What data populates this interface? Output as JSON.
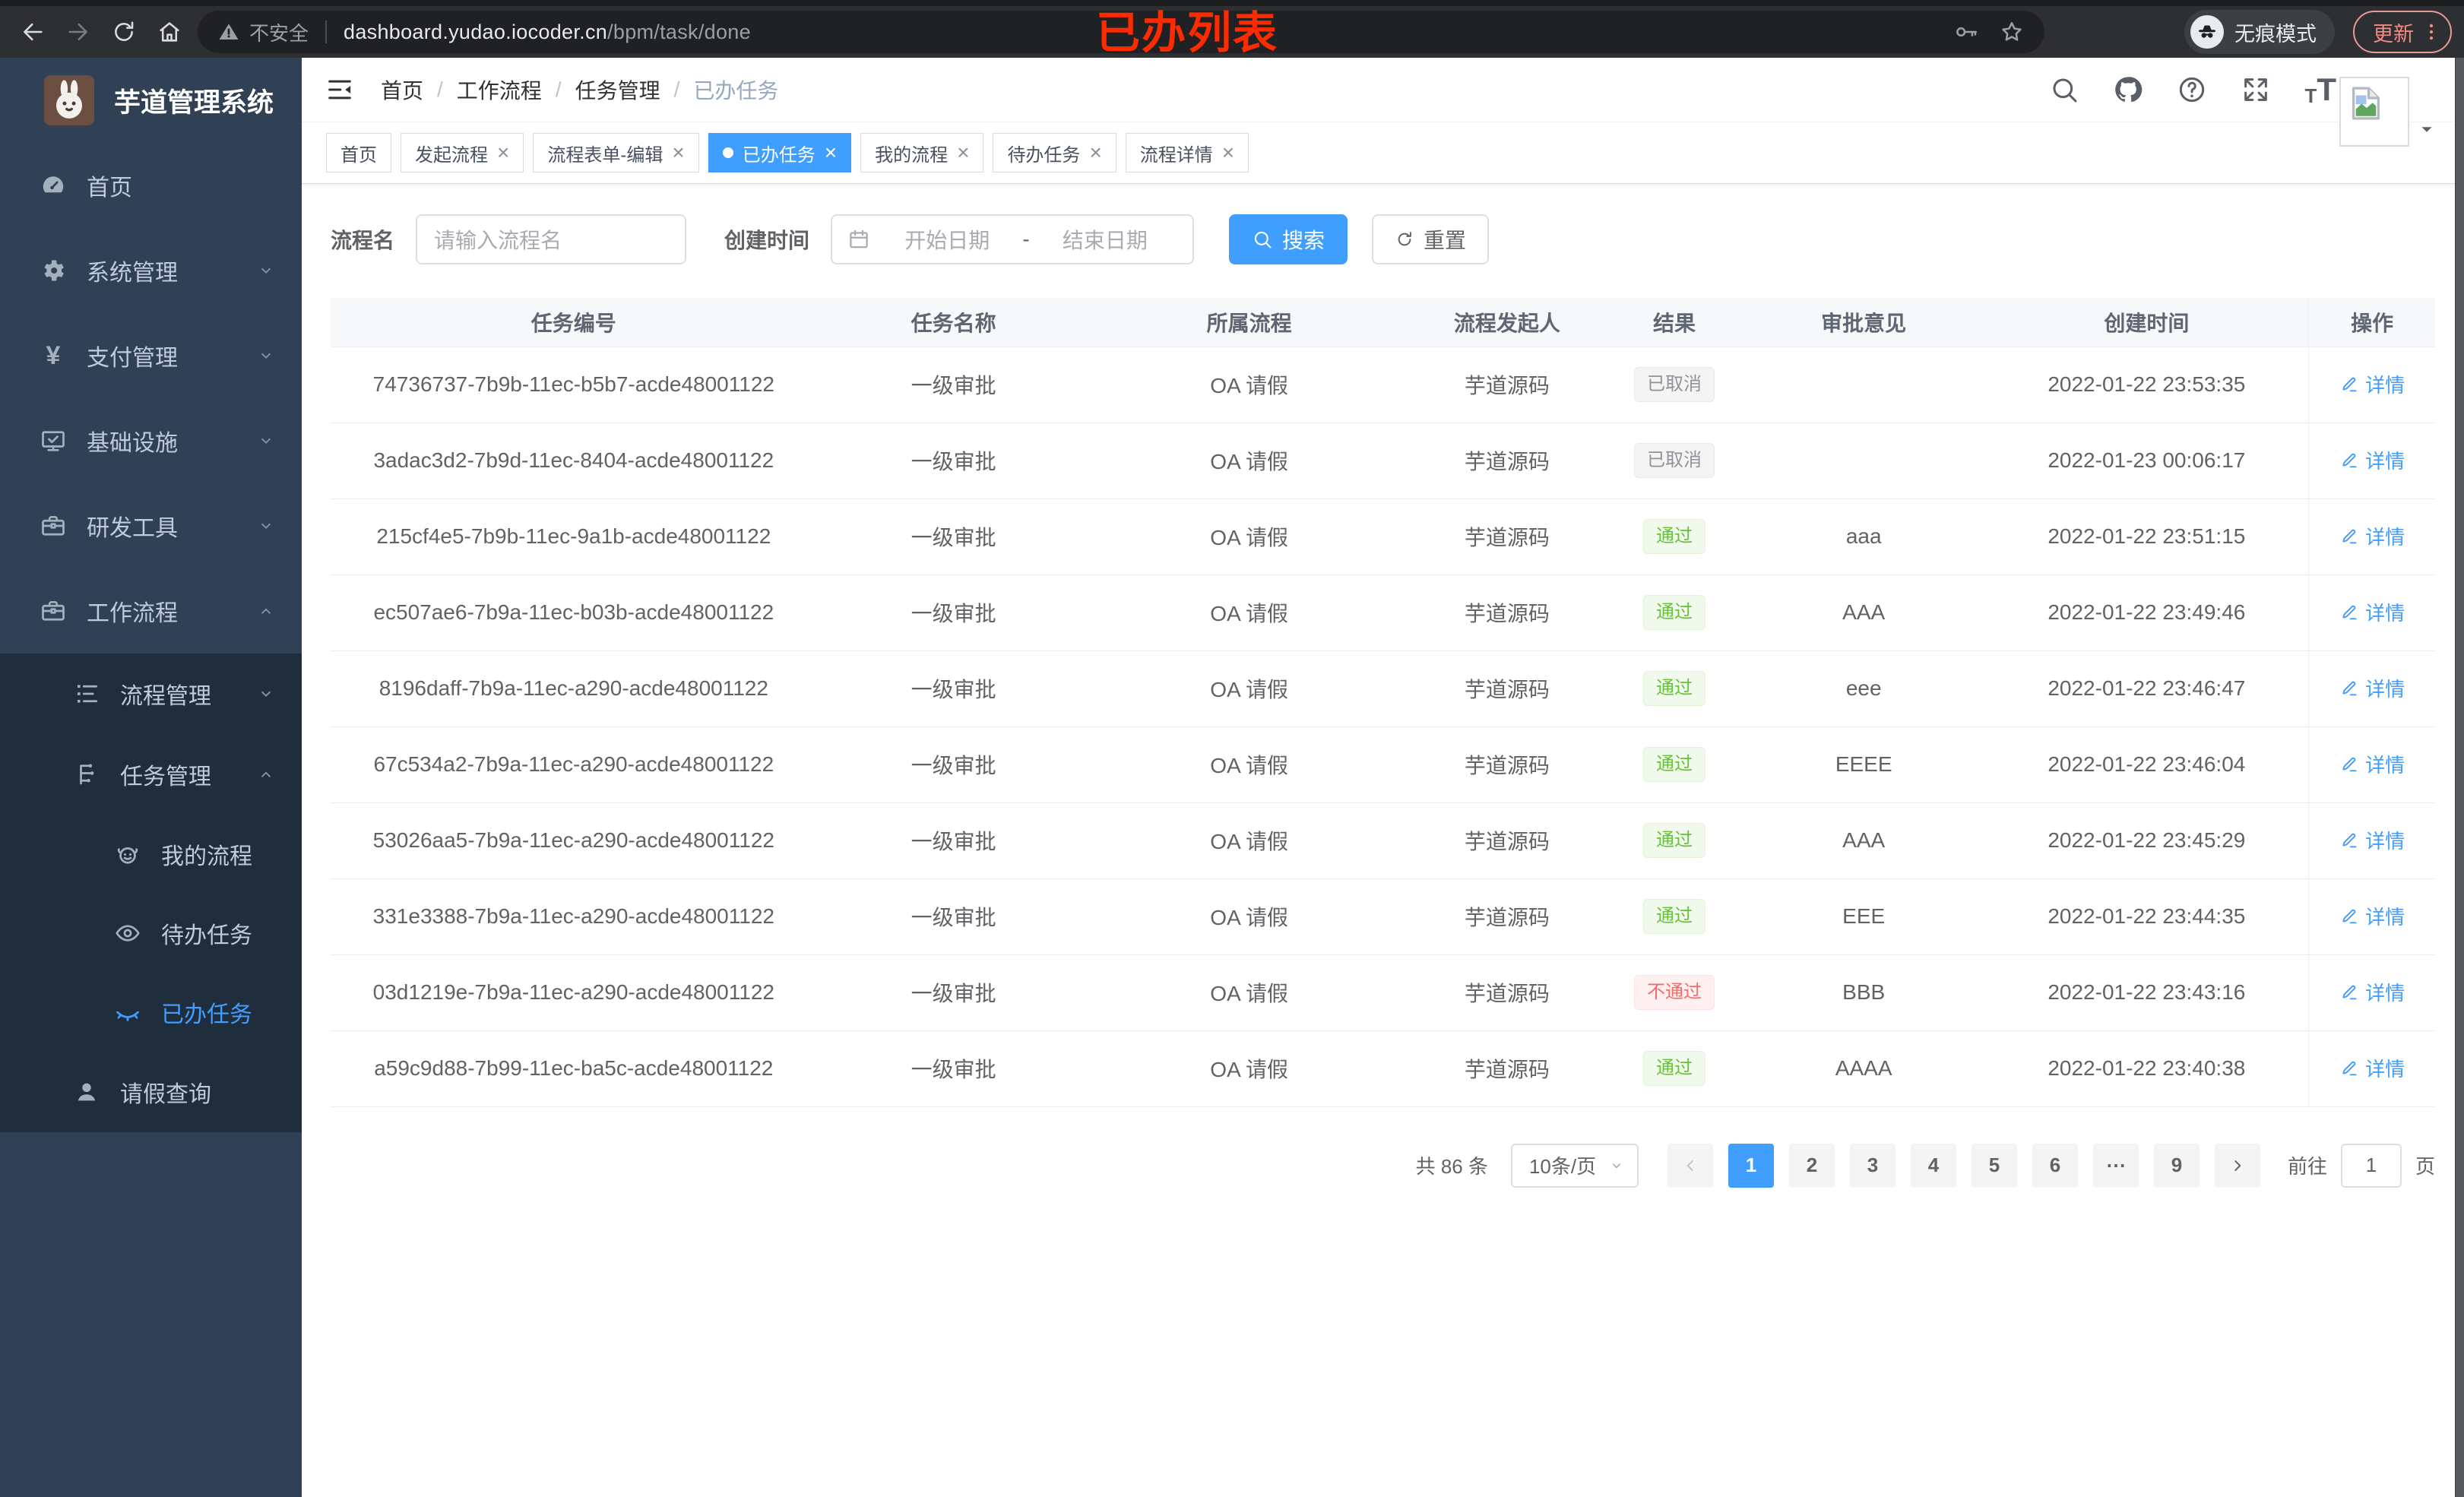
{
  "browser": {
    "nav_icons": [
      "back-icon",
      "forward-icon",
      "reload-icon",
      "home-icon"
    ],
    "security_label": "不安全",
    "url_host": "dashboard.yudao.iocoder.cn",
    "url_path": "/bpm/task/done",
    "incognito_label": "无痕模式",
    "update_label": "更新"
  },
  "annotation": {
    "text": "已办列表",
    "color": "#ff2b00"
  },
  "sidebar": {
    "app_title": "芋道管理系统",
    "menu": [
      {
        "label": "首页",
        "icon": "dashboard-icon",
        "level": 1
      },
      {
        "label": "系统管理",
        "icon": "gear-icon",
        "level": 1,
        "chevron": "down"
      },
      {
        "label": "支付管理",
        "icon": "yen-icon",
        "level": 1,
        "chevron": "down"
      },
      {
        "label": "基础设施",
        "icon": "monitor-icon",
        "level": 1,
        "chevron": "down"
      },
      {
        "label": "研发工具",
        "icon": "toolbox-icon",
        "level": 1,
        "chevron": "down"
      },
      {
        "label": "工作流程",
        "icon": "briefcase-icon",
        "level": 1,
        "chevron": "up"
      },
      {
        "label": "流程管理",
        "icon": "list-tree-icon",
        "level": 2,
        "chevron": "down",
        "sub": true
      },
      {
        "label": "任务管理",
        "icon": "org-tree-icon",
        "level": 2,
        "chevron": "up",
        "sub": true
      },
      {
        "label": "我的流程",
        "icon": "robot-icon",
        "level": 3,
        "sub": true
      },
      {
        "label": "待办任务",
        "icon": "eye-open-icon",
        "level": 3,
        "sub": true
      },
      {
        "label": "已办任务",
        "icon": "eye-closed-icon",
        "level": 3,
        "sub": true,
        "active": true
      },
      {
        "label": "请假查询",
        "icon": "user-icon",
        "level": 2,
        "sub": true
      }
    ]
  },
  "header": {
    "breadcrumb": [
      "首页",
      "工作流程",
      "任务管理",
      "已办任务"
    ],
    "breadcrumb_separator": "/",
    "action_icons": [
      "search-icon",
      "github-icon",
      "question-icon",
      "fullscreen-icon",
      "font-size-icon"
    ]
  },
  "tabs": [
    {
      "label": "首页",
      "closable": false,
      "active": false
    },
    {
      "label": "发起流程",
      "closable": true,
      "active": false
    },
    {
      "label": "流程表单-编辑",
      "closable": true,
      "active": false
    },
    {
      "label": "已办任务",
      "closable": true,
      "active": true
    },
    {
      "label": "我的流程",
      "closable": true,
      "active": false
    },
    {
      "label": "待办任务",
      "closable": true,
      "active": false
    },
    {
      "label": "流程详情",
      "closable": true,
      "active": false
    }
  ],
  "filters": {
    "name_label": "流程名",
    "name_placeholder": "请输入流程名",
    "time_label": "创建时间",
    "start_placeholder": "开始日期",
    "range_separator": "-",
    "end_placeholder": "结束日期",
    "search_label": "搜索",
    "reset_label": "重置"
  },
  "table": {
    "columns": [
      "任务编号",
      "任务名称",
      "所属流程",
      "流程发起人",
      "结果",
      "审批意见",
      "创建时间",
      "操作"
    ],
    "detail_label": "详情",
    "rows": [
      {
        "id": "74736737-7b9b-11ec-b5b7-acde48001122",
        "name": "一级审批",
        "process": "OA 请假",
        "starter": "芋道源码",
        "result": "已取消",
        "result_type": "info",
        "comment": "",
        "time": "2022-01-22 23:53:35"
      },
      {
        "id": "3adac3d2-7b9d-11ec-8404-acde48001122",
        "name": "一级审批",
        "process": "OA 请假",
        "starter": "芋道源码",
        "result": "已取消",
        "result_type": "info",
        "comment": "",
        "time": "2022-01-23 00:06:17"
      },
      {
        "id": "215cf4e5-7b9b-11ec-9a1b-acde48001122",
        "name": "一级审批",
        "process": "OA 请假",
        "starter": "芋道源码",
        "result": "通过",
        "result_type": "success",
        "comment": "aaa",
        "time": "2022-01-22 23:51:15"
      },
      {
        "id": "ec507ae6-7b9a-11ec-b03b-acde48001122",
        "name": "一级审批",
        "process": "OA 请假",
        "starter": "芋道源码",
        "result": "通过",
        "result_type": "success",
        "comment": "AAA",
        "time": "2022-01-22 23:49:46"
      },
      {
        "id": "8196daff-7b9a-11ec-a290-acde48001122",
        "name": "一级审批",
        "process": "OA 请假",
        "starter": "芋道源码",
        "result": "通过",
        "result_type": "success",
        "comment": "eee",
        "time": "2022-01-22 23:46:47"
      },
      {
        "id": "67c534a2-7b9a-11ec-a290-acde48001122",
        "name": "一级审批",
        "process": "OA 请假",
        "starter": "芋道源码",
        "result": "通过",
        "result_type": "success",
        "comment": "EEEE",
        "time": "2022-01-22 23:46:04"
      },
      {
        "id": "53026aa5-7b9a-11ec-a290-acde48001122",
        "name": "一级审批",
        "process": "OA 请假",
        "starter": "芋道源码",
        "result": "通过",
        "result_type": "success",
        "comment": "AAA",
        "time": "2022-01-22 23:45:29"
      },
      {
        "id": "331e3388-7b9a-11ec-a290-acde48001122",
        "name": "一级审批",
        "process": "OA 请假",
        "starter": "芋道源码",
        "result": "通过",
        "result_type": "success",
        "comment": "EEE",
        "time": "2022-01-22 23:44:35"
      },
      {
        "id": "03d1219e-7b9a-11ec-a290-acde48001122",
        "name": "一级审批",
        "process": "OA 请假",
        "starter": "芋道源码",
        "result": "不通过",
        "result_type": "danger",
        "comment": "BBB",
        "time": "2022-01-22 23:43:16"
      },
      {
        "id": "a59c9d88-7b99-11ec-ba5c-acde48001122",
        "name": "一级审批",
        "process": "OA 请假",
        "starter": "芋道源码",
        "result": "通过",
        "result_type": "success",
        "comment": "AAAA",
        "time": "2022-01-22 23:40:38"
      }
    ]
  },
  "pagination": {
    "total_label": "共 86 条",
    "page_size_label": "10条/页",
    "pages": [
      "1",
      "2",
      "3",
      "4",
      "5",
      "6",
      "⋯",
      "9"
    ],
    "active_page": "1",
    "goto_label": "前往",
    "goto_value": "1",
    "goto_suffix": "页"
  },
  "colors": {
    "accent": "#409eff",
    "success": "#67c23a",
    "danger": "#f56c6c",
    "info": "#909399",
    "sidebar_bg": "#304156",
    "submenu_bg": "#1f2d3d",
    "annotation_red": "#ff2b00",
    "chrome_bg": "#2e2f33",
    "update_red": "#f28b82"
  }
}
